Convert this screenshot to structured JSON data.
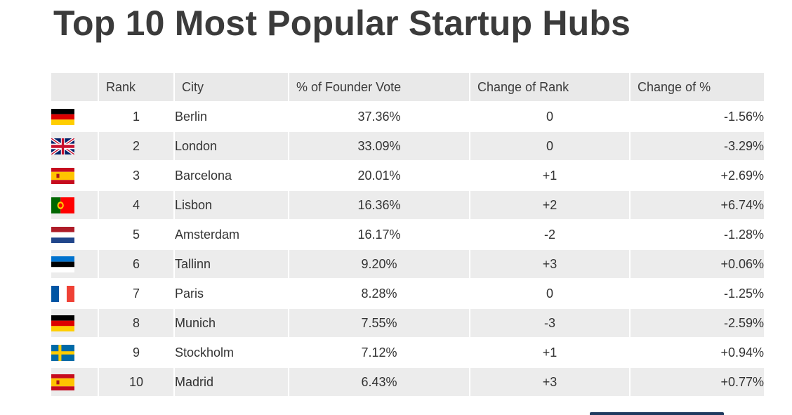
{
  "title": "Top 10 Most Popular Startup Hubs",
  "chart_data": {
    "type": "table",
    "title": "Top 10 Most Popular Startup Hubs",
    "columns": [
      "",
      "Rank",
      "City",
      "% of Founder Vote",
      "Change of Rank",
      "Change of %"
    ],
    "rows": [
      {
        "flag": "germany-flag",
        "rank": "1",
        "city": "Berlin",
        "vote": "37.36%",
        "change_rank": "0",
        "change_pct": "-1.56%"
      },
      {
        "flag": "uk-flag",
        "rank": "2",
        "city": "London",
        "vote": "33.09%",
        "change_rank": "0",
        "change_pct": "-3.29%"
      },
      {
        "flag": "spain-flag",
        "rank": "3",
        "city": "Barcelona",
        "vote": "20.01%",
        "change_rank": "+1",
        "change_pct": "+2.69%"
      },
      {
        "flag": "portugal-flag",
        "rank": "4",
        "city": "Lisbon",
        "vote": "16.36%",
        "change_rank": "+2",
        "change_pct": "+6.74%"
      },
      {
        "flag": "netherlands-flag",
        "rank": "5",
        "city": "Amsterdam",
        "vote": "16.17%",
        "change_rank": "-2",
        "change_pct": "-1.28%"
      },
      {
        "flag": "estonia-flag",
        "rank": "6",
        "city": "Tallinn",
        "vote": "9.20%",
        "change_rank": "+3",
        "change_pct": "+0.06%"
      },
      {
        "flag": "france-flag",
        "rank": "7",
        "city": "Paris",
        "vote": "8.28%",
        "change_rank": "0",
        "change_pct": "-1.25%"
      },
      {
        "flag": "germany-flag",
        "rank": "8",
        "city": "Munich",
        "vote": "7.55%",
        "change_rank": "-3",
        "change_pct": "-2.59%"
      },
      {
        "flag": "sweden-flag",
        "rank": "9",
        "city": "Stockholm",
        "vote": "7.12%",
        "change_rank": "+1",
        "change_pct": "+0.94%"
      },
      {
        "flag": "spain-flag",
        "rank": "10",
        "city": "Madrid",
        "vote": "6.43%",
        "change_rank": "+3",
        "change_pct": "+0.77%"
      }
    ]
  },
  "colors": {
    "header_bg": "#e9e9e9",
    "row_alt_bg": "#ececec",
    "title_color": "#3b3b3b"
  }
}
